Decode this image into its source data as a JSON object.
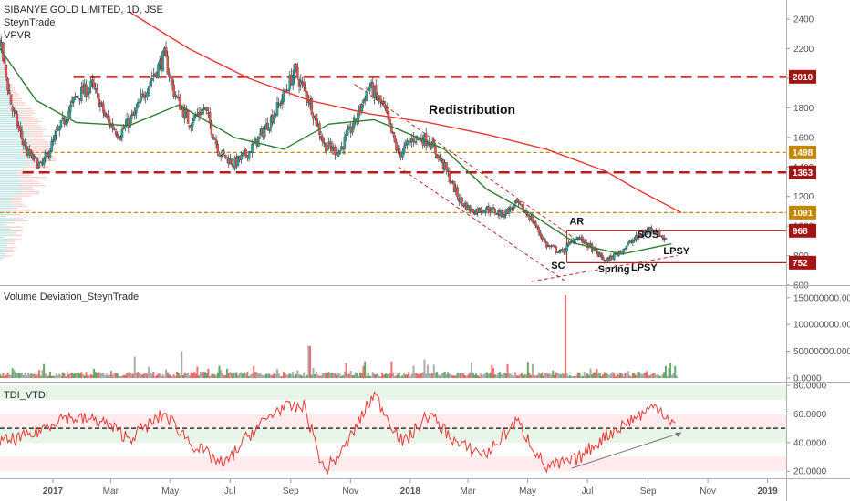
{
  "legend": {
    "symbol": "SIBANYE GOLD LIMITED, 1D, JSE",
    "author": "SteynTrade",
    "indicator": "VPVR"
  },
  "colors": {
    "up": "#26a69a",
    "down": "#ef5350",
    "resistance": "#b71c1c",
    "dotted": "#c98a00",
    "ma_short": "#2e7d32",
    "ma_long": "#e53935",
    "tdi": "#e53935",
    "channel": "#c62828"
  },
  "x_axis": {
    "labels": [
      "2017",
      "Mar",
      "May",
      "Jul",
      "Sep",
      "Nov",
      "2018",
      "Mar",
      "May",
      "Jul",
      "Sep",
      "Nov",
      "2019"
    ]
  },
  "chart_data": [
    {
      "type": "candlestick",
      "title": "SIBANYE GOLD LIMITED, 1D, JSE",
      "x_range": [
        "2016-11-08",
        "2019-01-20"
      ],
      "ylim": [
        600,
        2530
      ],
      "y_ticks": [
        "600",
        "800",
        "1000",
        "1200",
        "1400",
        "1600",
        "1800",
        "2000",
        "2200",
        "2400"
      ],
      "close_path": [
        [
          "2016-11-08",
          2250
        ],
        [
          "2016-11-20",
          1800
        ],
        [
          "2016-12-05",
          1500
        ],
        [
          "2016-12-20",
          1400
        ],
        [
          "2017-01-05",
          1620
        ],
        [
          "2017-01-25",
          1880
        ],
        [
          "2017-02-10",
          1950
        ],
        [
          "2017-02-25",
          1720
        ],
        [
          "2017-03-10",
          1620
        ],
        [
          "2017-03-25",
          1750
        ],
        [
          "2017-04-10",
          1980
        ],
        [
          "2017-04-25",
          2150
        ],
        [
          "2017-05-05",
          1900
        ],
        [
          "2017-05-20",
          1700
        ],
        [
          "2017-06-05",
          1800
        ],
        [
          "2017-06-20",
          1500
        ],
        [
          "2017-07-05",
          1420
        ],
        [
          "2017-07-20",
          1500
        ],
        [
          "2017-08-05",
          1650
        ],
        [
          "2017-08-20",
          1820
        ],
        [
          "2017-09-05",
          2050
        ],
        [
          "2017-09-20",
          1850
        ],
        [
          "2017-10-05",
          1550
        ],
        [
          "2017-10-20",
          1500
        ],
        [
          "2017-11-05",
          1700
        ],
        [
          "2017-11-20",
          1950
        ],
        [
          "2017-12-05",
          1800
        ],
        [
          "2017-12-20",
          1480
        ],
        [
          "2018-01-05",
          1600
        ],
        [
          "2018-01-20",
          1580
        ],
        [
          "2018-02-05",
          1400
        ],
        [
          "2018-02-20",
          1180
        ],
        [
          "2018-03-05",
          1100
        ],
        [
          "2018-03-20",
          1120
        ],
        [
          "2018-04-05",
          1080
        ],
        [
          "2018-04-20",
          1150
        ],
        [
          "2018-05-05",
          1050
        ],
        [
          "2018-05-20",
          870
        ],
        [
          "2018-06-05",
          820
        ],
        [
          "2018-06-20",
          930
        ],
        [
          "2018-07-05",
          850
        ],
        [
          "2018-07-20",
          760
        ],
        [
          "2018-08-05",
          840
        ],
        [
          "2018-08-20",
          920
        ],
        [
          "2018-09-05",
          990
        ],
        [
          "2018-09-20",
          900
        ]
      ],
      "ma_short_path": [
        [
          "2016-11-08",
          2200
        ],
        [
          "2016-12-15",
          1850
        ],
        [
          "2017-01-25",
          1700
        ],
        [
          "2017-03-20",
          1680
        ],
        [
          "2017-05-10",
          1820
        ],
        [
          "2017-07-05",
          1600
        ],
        [
          "2017-08-25",
          1520
        ],
        [
          "2017-10-10",
          1690
        ],
        [
          "2017-11-25",
          1720
        ],
        [
          "2017-12-25",
          1640
        ],
        [
          "2018-02-05",
          1520
        ],
        [
          "2018-03-20",
          1250
        ],
        [
          "2018-05-05",
          1080
        ],
        [
          "2018-06-20",
          880
        ],
        [
          "2018-08-05",
          810
        ],
        [
          "2018-09-25",
          880
        ]
      ],
      "ma_long_path": [
        [
          "2017-03-20",
          2450
        ],
        [
          "2017-05-20",
          2200
        ],
        [
          "2017-07-20",
          2000
        ],
        [
          "2017-09-20",
          1850
        ],
        [
          "2017-11-20",
          1760
        ],
        [
          "2018-01-20",
          1700
        ],
        [
          "2018-03-20",
          1620
        ],
        [
          "2018-05-20",
          1520
        ],
        [
          "2018-07-20",
          1370
        ],
        [
          "2018-08-20",
          1250
        ],
        [
          "2018-10-05",
          1090
        ]
      ],
      "levels": [
        {
          "label": "2010",
          "value": 2010,
          "style": "dashed-red",
          "from": "2017-01-22"
        },
        {
          "label": "1498",
          "value": 1498,
          "style": "dotted-orange",
          "from": "2016-12-01"
        },
        {
          "label": "1363",
          "value": 1363,
          "style": "dashed-red",
          "from": "2016-12-01"
        },
        {
          "label": "1091",
          "value": 1091,
          "style": "dotted-orange",
          "from": "2016-11-08"
        },
        {
          "label": "968",
          "value": 968,
          "style": "solid-red",
          "from": "2018-06-10"
        },
        {
          "label": "752",
          "value": 752,
          "style": "solid-red",
          "from": "2018-06-10"
        }
      ],
      "channel": {
        "upper": [
          [
            "2017-11-05",
            1960
          ],
          [
            "2018-06-15",
            930
          ]
        ],
        "lower": [
          [
            "2017-12-20",
            1400
          ],
          [
            "2018-06-10",
            620
          ]
        ]
      },
      "trend_line": [
        [
          "2018-05-05",
          625
        ],
        [
          "2018-10-01",
          800
        ]
      ],
      "annotations": [
        {
          "text": "Redistribution",
          "x": "2018-01-20",
          "y": 1760
        },
        {
          "text": "AR",
          "x": "2018-06-20",
          "y": 1010
        },
        {
          "text": "SC",
          "x": "2018-06-01",
          "y": 710
        },
        {
          "text": "Spring",
          "x": "2018-07-28",
          "y": 685
        },
        {
          "text": "LPSY",
          "x": "2018-08-28",
          "y": 700
        },
        {
          "text": "SOS",
          "x": "2018-09-01",
          "y": 920
        },
        {
          "text": "LPSY",
          "x": "2018-09-30",
          "y": 810
        }
      ]
    },
    {
      "type": "bar",
      "title": "Volume Deviation_SteynTrade",
      "ylim": [
        0,
        165000000
      ],
      "y_ticks": [
        "0.0000",
        "50000000.0000",
        "100000000.0000",
        "150000000.0000"
      ],
      "peaks": [
        [
          "2017-03-25",
          40000000
        ],
        [
          "2017-05-12",
          50000000
        ],
        [
          "2017-09-20",
          60000000
        ],
        [
          "2018-01-15",
          35000000
        ],
        [
          "2018-06-08",
          155000000
        ],
        [
          "2018-05-01",
          30000000
        ]
      ]
    },
    {
      "type": "line",
      "title": "TDI_VTDI",
      "ylim": [
        15,
        82
      ],
      "y_ticks": [
        "20.0000",
        "40.0000",
        "60.0000",
        "80.0000"
      ],
      "bands": [
        {
          "from": 70,
          "to": 80
        },
        {
          "from": 40,
          "to": 60
        },
        {
          "from": 20,
          "to": 30
        }
      ],
      "midline": 50,
      "tdi_path": [
        [
          "2016-11-08",
          40
        ],
        [
          "2016-12-10",
          45
        ],
        [
          "2017-01-10",
          58
        ],
        [
          "2017-02-20",
          55
        ],
        [
          "2017-03-20",
          43
        ],
        [
          "2017-04-25",
          60
        ],
        [
          "2017-05-25",
          38
        ],
        [
          "2017-06-25",
          24
        ],
        [
          "2017-07-20",
          45
        ],
        [
          "2017-08-20",
          64
        ],
        [
          "2017-09-15",
          65
        ],
        [
          "2017-10-05",
          20
        ],
        [
          "2017-10-25",
          35
        ],
        [
          "2017-11-25",
          74
        ],
        [
          "2017-12-25",
          39
        ],
        [
          "2018-01-20",
          60
        ],
        [
          "2018-02-20",
          38
        ],
        [
          "2018-03-20",
          32
        ],
        [
          "2018-04-20",
          55
        ],
        [
          "2018-05-20",
          22
        ],
        [
          "2018-06-20",
          28
        ],
        [
          "2018-07-20",
          45
        ],
        [
          "2018-08-20",
          58
        ],
        [
          "2018-09-10",
          66
        ],
        [
          "2018-09-30",
          51
        ]
      ],
      "trend_arrow": [
        [
          "2018-06-15",
          22
        ],
        [
          "2018-10-05",
          47
        ]
      ]
    }
  ]
}
